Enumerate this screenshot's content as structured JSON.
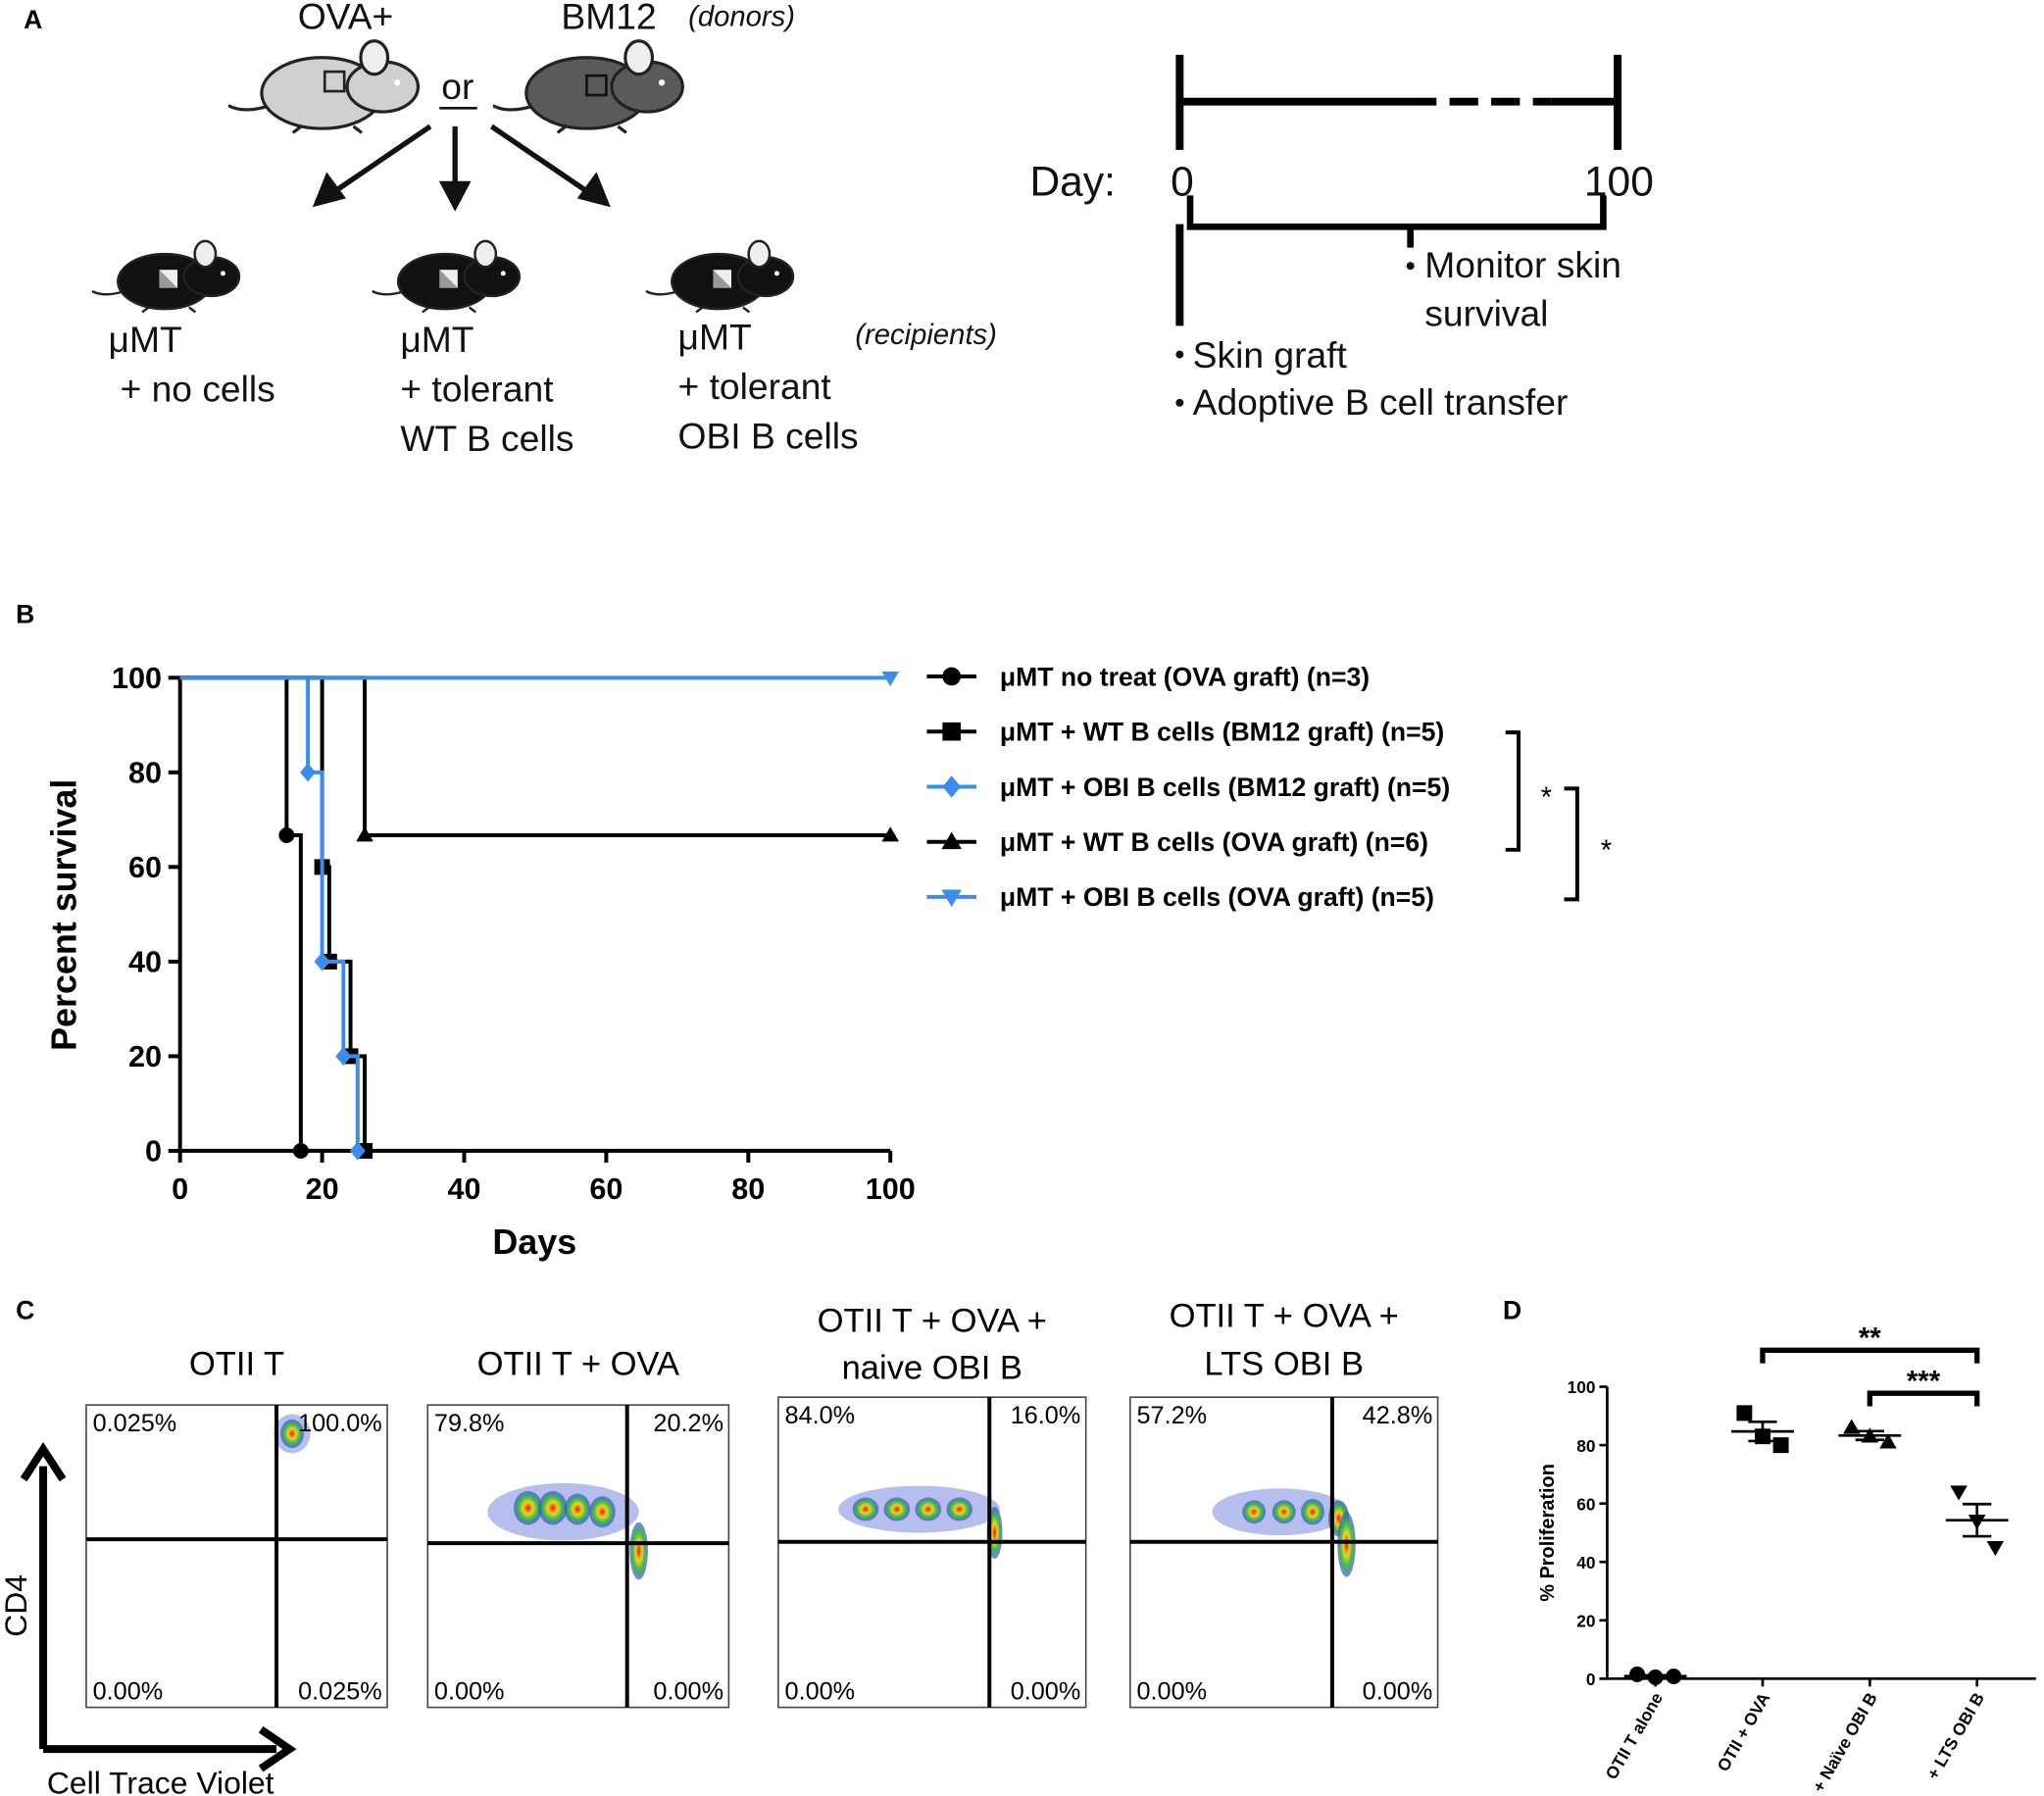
{
  "panel_labels": [
    "A",
    "B",
    "C",
    "D"
  ],
  "panel_a": {
    "donors": [
      "OVA+",
      "BM12"
    ],
    "donors_note": "(donors)",
    "or": "or",
    "recipients": [
      [
        "μMT",
        "+ no cells"
      ],
      [
        "μMT",
        "+ tolerant",
        "WT B cells"
      ],
      [
        "μMT",
        "+ tolerant",
        "OBI B cells"
      ]
    ],
    "recipients_note": "(recipients)",
    "timeline": {
      "day_label": "Day:",
      "start": "0",
      "end": "100",
      "monitor": [
        "Monitor skin",
        "survival"
      ],
      "events": [
        "Skin graft",
        "Adoptive B cell transfer"
      ]
    }
  },
  "chart_data": [
    {
      "type": "step",
      "x_label": "Days",
      "y_label": "Percent survival",
      "xlim": [
        0,
        100
      ],
      "xticks": [
        0,
        20,
        40,
        60,
        80,
        100
      ],
      "ylim": [
        0,
        100
      ],
      "yticks": [
        0,
        20,
        40,
        60,
        80,
        100
      ],
      "series": [
        {
          "name": "μMT no treat (OVA graft) (n=3)",
          "color": "#000000",
          "marker": "circle",
          "x": [
            0,
            15,
            17
          ],
          "values": [
            100,
            66.7,
            0
          ]
        },
        {
          "name": "μMT + WT B cells (BM12 graft) (n=5)",
          "color": "#000000",
          "marker": "square",
          "x": [
            0,
            20,
            21,
            24,
            26
          ],
          "values": [
            100,
            60,
            40,
            20,
            0
          ]
        },
        {
          "name": "μMT + OBI B cells (BM12 graft) (n=5)",
          "color": "#3b8ded",
          "marker": "diamond",
          "x": [
            0,
            18,
            20,
            23,
            25
          ],
          "values": [
            100,
            80,
            40,
            20,
            0
          ]
        },
        {
          "name": "μMT + WT B cells (OVA graft) (n=6)",
          "color": "#000000",
          "marker": "triangle",
          "x": [
            0,
            26,
            100
          ],
          "values": [
            100,
            66.7,
            66.7
          ]
        },
        {
          "name": "μMT + OBI B cells (OVA graft) (n=5)",
          "color": "#3b8ded",
          "marker": "triangle-down",
          "x": [
            0,
            100
          ],
          "values": [
            100,
            100
          ]
        }
      ],
      "annotations": [
        "*",
        "*"
      ]
    },
    {
      "type": "dot",
      "y_label": "% Proliferation",
      "ylim": [
        0,
        100
      ],
      "yticks": [
        0,
        20,
        40,
        60,
        80,
        100
      ],
      "categories": [
        "OTII T alone",
        "OTII + OVA",
        "+ Naïve OBI B",
        "+ LTS OBI B"
      ],
      "color": "#000000",
      "markers": [
        "circle",
        "square",
        "triangle",
        "triangle-down"
      ],
      "groups": [
        {
          "values": [
            1.5,
            0.5,
            0.8
          ],
          "mean": 0.9,
          "sem": 0.3
        },
        {
          "values": [
            91,
            83,
            80
          ],
          "mean": 84.7,
          "sem": 3.3
        },
        {
          "values": [
            86,
            83,
            81
          ],
          "mean": 83.3,
          "sem": 1.5
        },
        {
          "values": [
            64,
            54,
            45
          ],
          "mean": 54.3,
          "sem": 5.5
        }
      ],
      "significance": [
        "**",
        "***"
      ]
    }
  ],
  "panel_c": {
    "plots": [
      {
        "title": [
          "OTII T"
        ],
        "quadrants": [
          "0.025%",
          "100.0%",
          "0.00%",
          "0.025%"
        ]
      },
      {
        "title": [
          "OTII T + OVA"
        ],
        "quadrants": [
          "79.8%",
          "20.2%",
          "0.00%",
          "0.00%"
        ]
      },
      {
        "title": [
          "OTII T + OVA +",
          "naive OBI B"
        ],
        "quadrants": [
          "84.0%",
          "16.0%",
          "0.00%",
          "0.00%"
        ]
      },
      {
        "title": [
          "OTII T + OVA +",
          "LTS OBI B"
        ],
        "quadrants": [
          "57.2%",
          "42.8%",
          "0.00%",
          "0.00%"
        ]
      }
    ],
    "y_label": "CD4",
    "x_label": "Cell Trace Violet"
  }
}
